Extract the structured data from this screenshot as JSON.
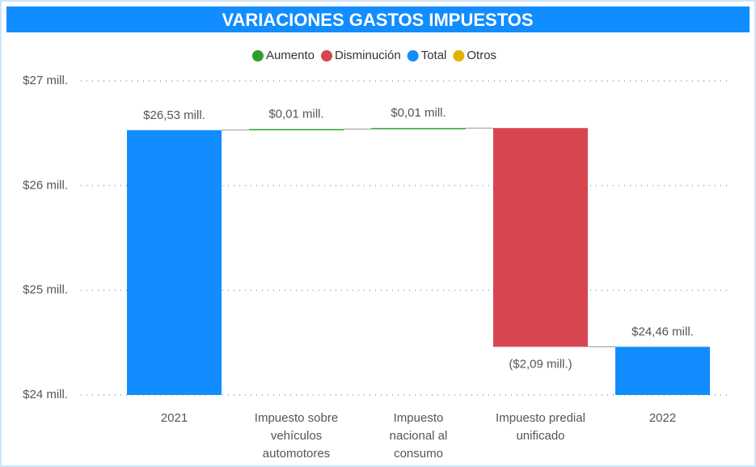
{
  "chart_data": {
    "type": "waterfall",
    "title": "VARIACIONES GASTOS IMPUESTOS",
    "categories": [
      "2021",
      "Impuesto sobre vehículos automotores",
      "Impuesto nacional al consumo",
      "Impuesto predial unificado",
      "2022"
    ],
    "series": [
      {
        "name": "Aumento",
        "color": "#2ca02c",
        "values": [
          null,
          0.01,
          0.01,
          null,
          null
        ],
        "value_labels": [
          null,
          "$0,01 mill.",
          "$0,01 mill.",
          null,
          null
        ]
      },
      {
        "name": "Disminución",
        "color": "#d64550",
        "values": [
          null,
          null,
          null,
          -2.09,
          null
        ],
        "value_labels": [
          null,
          null,
          null,
          "($2,09 mill.)",
          null
        ]
      },
      {
        "name": "Total",
        "color": "#118dff",
        "values": [
          26.53,
          null,
          null,
          null,
          24.46
        ],
        "value_labels": [
          "$26,53 mill.",
          null,
          null,
          null,
          "$24,46 mill."
        ]
      },
      {
        "name": "Otros",
        "color": "#e0b400",
        "values": [
          null,
          null,
          null,
          null,
          null
        ]
      }
    ],
    "ylim": [
      24,
      27
    ],
    "yticks": [
      {
        "value": 24,
        "label": "$24 mill."
      },
      {
        "value": 25,
        "label": "$25 mill."
      },
      {
        "value": 26,
        "label": "$26 mill."
      },
      {
        "value": 27,
        "label": "$27 mill."
      }
    ],
    "grid": true
  }
}
